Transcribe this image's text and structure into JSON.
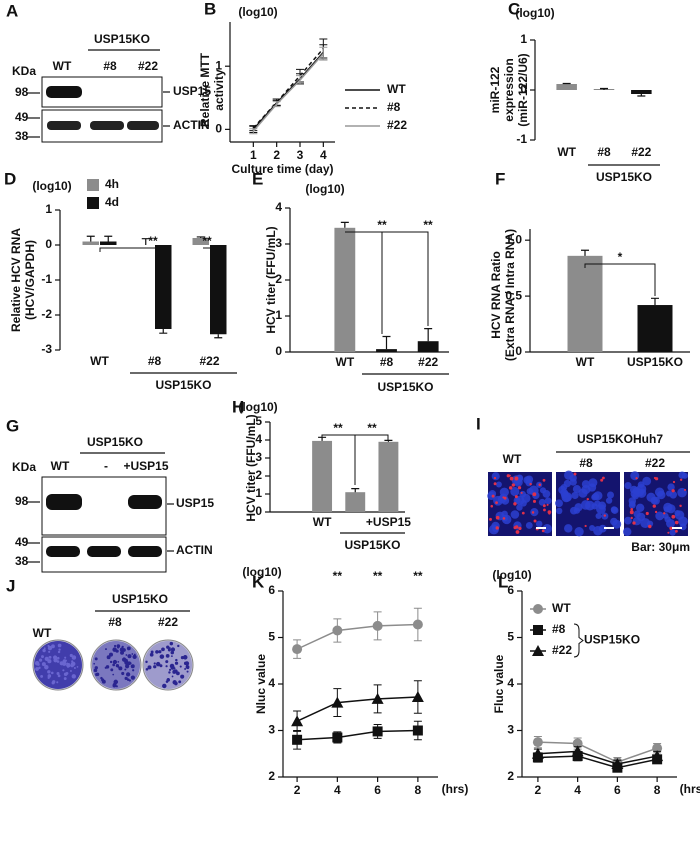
{
  "chart_data": [
    {
      "panel": "B",
      "type": "line",
      "y_unit": "(log10)",
      "ylabel": [
        "Relative MTT",
        "activity"
      ],
      "xlabel": "Culture time (day)",
      "x": [
        1,
        2,
        3,
        4
      ],
      "xlim": [
        0,
        4.5
      ],
      "xticks": [
        1,
        2,
        3,
        4
      ],
      "ylim": [
        -0.2,
        1.7
      ],
      "yticks": [
        0,
        1
      ],
      "legend": "lower right",
      "series": [
        {
          "name": "WT",
          "color": "#111111",
          "style": "solid",
          "marker": null,
          "values": [
            0,
            0.42,
            0.8,
            1.22
          ],
          "errors": [
            0.05,
            0.04,
            0.08,
            0.12
          ]
        },
        {
          "name": "#8",
          "color": "#111111",
          "style": "dashed",
          "marker": null,
          "values": [
            0.02,
            0.43,
            0.85,
            1.28
          ],
          "errors": [
            0.04,
            0.05,
            0.1,
            0.15
          ]
        },
        {
          "name": "#22",
          "color": "#999999",
          "style": "solid",
          "marker": null,
          "values": [
            -0.03,
            0.4,
            0.78,
            1.2
          ],
          "errors": [
            0.04,
            0.04,
            0.07,
            0.1
          ]
        }
      ]
    },
    {
      "panel": "C",
      "type": "bar",
      "y_unit": "(log10)",
      "ylabel": [
        "miR-122",
        "expression",
        "(miR-122/U6)"
      ],
      "categories": [
        "WT",
        "#8",
        "#22"
      ],
      "group_label": "USP15KO",
      "values": [
        0.12,
        0.01,
        -0.08
      ],
      "errors": [
        0.01,
        0.02,
        0.04
      ],
      "colors": [
        "#8c8c8c",
        "#111111",
        "#111111"
      ],
      "ylim": [
        -1,
        1
      ],
      "yticks": [
        -1,
        0,
        1
      ]
    },
    {
      "panel": "D",
      "type": "grouped_bar",
      "y_unit": "(log10)",
      "ylabel": [
        "Relative HCV RNA",
        "(HCV/GAPDH)"
      ],
      "categories": [
        "WT",
        "#8",
        "#22"
      ],
      "group_label": "USP15KO",
      "ylim": [
        -3,
        1
      ],
      "yticks": [
        -3,
        -2,
        -1,
        0,
        1
      ],
      "legend": "upper right",
      "series": [
        {
          "name": "4h",
          "color": "#8c8c8c",
          "values": [
            0.1,
            0,
            0.2
          ],
          "errors": [
            0.15,
            0.18,
            0.03
          ]
        },
        {
          "name": "4d",
          "color": "#111111",
          "values": [
            0.1,
            -2.4,
            -2.55
          ],
          "errors": [
            0.15,
            0.12,
            0.1
          ]
        }
      ],
      "annotations": [
        "**",
        "**"
      ]
    },
    {
      "panel": "E",
      "type": "bar",
      "y_unit": "(log10)",
      "ylabel": [
        "HCV titer (FFU/mL)"
      ],
      "categories": [
        "WT",
        "#8",
        "#22"
      ],
      "group_label": "USP15KO",
      "values": [
        3.45,
        0.08,
        0.3
      ],
      "errors": [
        0.15,
        0.35,
        0.35
      ],
      "colors": [
        "#8c8c8c",
        "#111111",
        "#111111"
      ],
      "ylim": [
        0,
        4
      ],
      "yticks": [
        0,
        1,
        2,
        3,
        4
      ],
      "annotations": [
        "**",
        "**"
      ]
    },
    {
      "panel": "F",
      "type": "bar",
      "ylabel": [
        "HCV RNA Ratio",
        "(Extra RNA / Intra RNA)"
      ],
      "categories": [
        "WT",
        "USP15KO"
      ],
      "values": [
        0.86,
        0.42
      ],
      "errors": [
        0.05,
        0.06
      ],
      "colors": [
        "#8c8c8c",
        "#111111"
      ],
      "ylim": [
        0,
        1.1
      ],
      "yticks": [
        0,
        0.5,
        {
          "value": 1,
          "label": "1.0"
        }
      ],
      "annotations": [
        "*"
      ]
    },
    {
      "panel": "H",
      "type": "bar",
      "y_unit": "(log10)",
      "ylabel": [
        "HCV titer (FFU/mL)"
      ],
      "categories": [
        "WT",
        null,
        "+USP15"
      ],
      "group_label": "USP15KO",
      "values": [
        3.95,
        1.1,
        3.9
      ],
      "errors": [
        0.2,
        0.2,
        0.08
      ],
      "colors": [
        "#8c8c8c",
        "#8c8c8c",
        "#8c8c8c"
      ],
      "ylim": [
        0,
        5
      ],
      "yticks": [
        0,
        1,
        2,
        3,
        4,
        5
      ],
      "annotations": [
        "**",
        "**"
      ]
    },
    {
      "panel": "K",
      "type": "line",
      "y_unit": "(log10)",
      "ylabel": [
        "Nluc value"
      ],
      "xlabel": "(hrs)",
      "x": [
        2,
        4,
        6,
        8
      ],
      "xlim": [
        1.3,
        9
      ],
      "xticks": [
        2,
        4,
        6,
        8
      ],
      "ylim": [
        2,
        6
      ],
      "yticks": [
        2,
        3,
        4,
        5,
        6
      ],
      "series": [
        {
          "name": "WT",
          "color": "#8c8c8c",
          "style": "solid",
          "marker": "circle",
          "values": [
            4.75,
            5.15,
            5.25,
            5.28
          ],
          "errors": [
            0.2,
            0.25,
            0.3,
            0.35
          ]
        },
        {
          "name": "#8",
          "color": "#111111",
          "style": "solid",
          "marker": "square",
          "values": [
            2.8,
            2.85,
            2.98,
            3.0
          ],
          "errors": [
            0.2,
            0.12,
            0.15,
            0.2
          ]
        },
        {
          "name": "#22",
          "color": "#111111",
          "style": "solid",
          "marker": "triangle",
          "values": [
            3.2,
            3.6,
            3.68,
            3.72
          ],
          "errors": [
            0.22,
            0.3,
            0.3,
            0.35
          ]
        }
      ],
      "annotations": [
        "**",
        "**",
        "**"
      ]
    },
    {
      "panel": "L",
      "type": "line",
      "y_unit": "(log10)",
      "ylabel": [
        "Fluc value"
      ],
      "xlabel": "(hrs)",
      "x": [
        2,
        4,
        6,
        8
      ],
      "xlim": [
        1.2,
        9
      ],
      "xticks": [
        2,
        4,
        6,
        8
      ],
      "ylim": [
        2,
        6
      ],
      "yticks": [
        2,
        3,
        4,
        5,
        6
      ],
      "legend": "upper left",
      "legend_group": "USP15KO",
      "series": [
        {
          "name": "WT",
          "color": "#8c8c8c",
          "style": "solid",
          "marker": "circle",
          "values": [
            2.75,
            2.72,
            2.32,
            2.62
          ],
          "errors": [
            0.12,
            0.12,
            0.1,
            0.1
          ]
        },
        {
          "name": "#8",
          "color": "#111111",
          "style": "solid",
          "marker": "square",
          "values": [
            2.42,
            2.45,
            2.2,
            2.38
          ],
          "errors": [
            0.1,
            0.1,
            0.08,
            0.08
          ]
        },
        {
          "name": "#22",
          "color": "#111111",
          "style": "solid",
          "marker": "triangle",
          "values": [
            2.5,
            2.55,
            2.28,
            2.45
          ],
          "errors": [
            0.1,
            0.1,
            0.08,
            0.1
          ]
        }
      ]
    }
  ],
  "figures": {
    "A": {
      "letter": "A",
      "group": "USP15KO",
      "lanes": [
        "WT",
        "#8",
        "#22"
      ],
      "unit": "KDa",
      "markers": [
        "98",
        "49",
        "38"
      ],
      "bands": [
        "USP15",
        "ACTIN"
      ]
    },
    "G": {
      "letter": "G",
      "group": "USP15KO",
      "lanes": [
        "WT",
        "-",
        "+USP15"
      ],
      "unit": "KDa",
      "markers": [
        "98",
        "49",
        "38"
      ],
      "bands": [
        "USP15",
        "ACTIN"
      ]
    },
    "I": {
      "letter": "I",
      "wt": "WT",
      "group": "USP15KOHuh7",
      "lanes": [
        "#8",
        "#22"
      ],
      "scale": "Bar: 30μm"
    },
    "J": {
      "letter": "J",
      "wt": "WT",
      "group": "USP15KO",
      "lanes": [
        "#8",
        "#22"
      ]
    }
  }
}
